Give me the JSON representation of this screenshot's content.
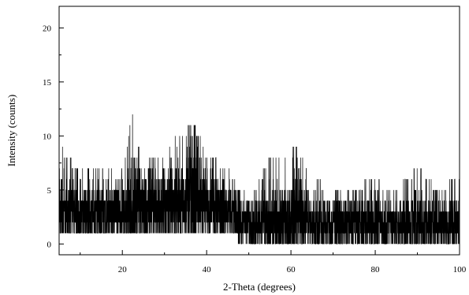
{
  "chart_data": {
    "type": "line",
    "title": "",
    "xlabel": "2-Theta (degrees)",
    "ylabel": "Intensity (counts)",
    "xlim": [
      5,
      100
    ],
    "ylim": [
      -1,
      22
    ],
    "xticks": [
      20,
      40,
      60,
      80,
      100
    ],
    "yticks": [
      0,
      5,
      10,
      15,
      20
    ],
    "tick_labels": {
      "x": [
        "20",
        "40",
        "60",
        "80",
        "100"
      ],
      "y": [
        "0",
        "5",
        "10",
        "15",
        "20"
      ]
    },
    "grid": false,
    "series": [
      {
        "color": "#000000",
        "x_step": 0.02,
        "envelope": {
          "x": [
            5,
            6,
            10,
            15,
            20,
            22.5,
            25,
            30,
            33,
            35,
            36,
            37,
            40,
            45,
            50,
            55,
            60,
            62,
            63,
            65,
            70,
            75,
            80,
            85,
            90,
            95,
            100
          ],
          "y_max": [
            11,
            8,
            7,
            7,
            7,
            12,
            7,
            9,
            10,
            10,
            12,
            11,
            8,
            7,
            4,
            8,
            8,
            10,
            8,
            6,
            5,
            5,
            6,
            5,
            7,
            5,
            6
          ],
          "y_min": [
            1,
            1,
            1,
            1,
            1,
            1,
            1,
            1,
            1,
            1,
            1,
            1,
            1,
            1,
            0,
            0,
            0,
            0,
            0,
            0,
            0,
            0,
            0,
            0,
            0,
            0,
            0
          ],
          "y_mean": [
            3,
            3,
            3,
            3,
            3,
            3.5,
            3.5,
            4,
            4,
            4.5,
            5,
            5,
            4,
            3,
            2,
            2,
            2.5,
            3,
            3,
            2,
            2,
            2,
            2,
            2,
            2,
            2,
            2
          ]
        }
      }
    ]
  }
}
